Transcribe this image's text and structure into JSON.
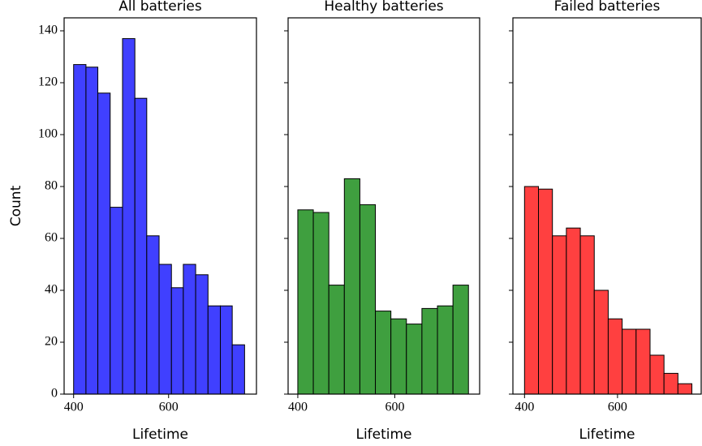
{
  "chart_data": [
    {
      "type": "histogram",
      "title": "All batteries",
      "xlabel": "Lifetime",
      "ylabel": "Count",
      "bins": [
        400,
        426,
        451,
        477,
        503,
        529,
        554,
        580,
        606,
        631,
        657,
        683,
        709,
        734,
        760
      ],
      "values": [
        127,
        126,
        116,
        72,
        137,
        114,
        61,
        50,
        41,
        50,
        46,
        34,
        34,
        19
      ],
      "color": "#4040ff",
      "xlim": [
        380,
        785
      ],
      "xticks": [
        400,
        600
      ],
      "ylim": [
        0,
        145
      ],
      "yticks": [
        0,
        20,
        40,
        60,
        80,
        100,
        120,
        140
      ]
    },
    {
      "type": "histogram",
      "title": "Healthy batteries",
      "xlabel": "Lifetime",
      "bins": [
        400,
        432,
        464,
        496,
        528,
        560,
        592,
        624,
        656,
        688,
        720,
        752
      ],
      "values": [
        71,
        70,
        42,
        83,
        73,
        32,
        29,
        27,
        33,
        34,
        42
      ],
      "color": "#3f9f3f",
      "xlim": [
        380,
        775
      ],
      "xticks": [
        400,
        600
      ],
      "ylim": [
        0,
        145
      ],
      "yticks": [
        0,
        20,
        40,
        60,
        80,
        100,
        120,
        140
      ]
    },
    {
      "type": "histogram",
      "title": "Failed batteries",
      "xlabel": "Lifetime",
      "bins": [
        400,
        430,
        460,
        490,
        520,
        550,
        580,
        610,
        640,
        670,
        700,
        730,
        760
      ],
      "values": [
        80,
        79,
        61,
        64,
        61,
        40,
        29,
        25,
        25,
        15,
        8,
        4
      ],
      "color": "#ff4040",
      "xlim": [
        375,
        780
      ],
      "xticks": [
        400,
        600
      ],
      "ylim": [
        0,
        145
      ],
      "yticks": [
        0,
        20,
        40,
        60,
        80,
        100,
        120,
        140
      ]
    }
  ]
}
